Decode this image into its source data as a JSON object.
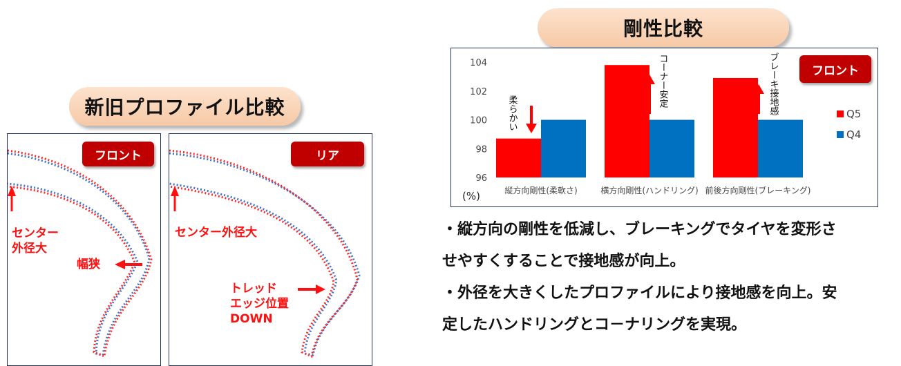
{
  "profile_section": {
    "title": "新旧プロファイル比較",
    "front_panel": {
      "badge": "フロント",
      "label_center_line1": "センター",
      "label_center_line2": "外径大",
      "label_narrow": "幅狭"
    },
    "rear_panel": {
      "badge": "リア",
      "label_center": "センター外径大",
      "label_tread_line1": "トレッド",
      "label_tread_line2": "エッジ位置",
      "label_tread_line3": "DOWN"
    },
    "colors": {
      "new_profile": "#ff2a2a",
      "old_profile": "#4472c4"
    }
  },
  "rigidity_section": {
    "title": "剛性比較",
    "badge": "フロント",
    "annotations": [
      "柔らかい",
      "コーナー安定",
      "ブレーキ接地感"
    ]
  },
  "chart_data": {
    "type": "bar",
    "categories": [
      "縦方向剛性(柔軟さ)",
      "横方向剛性(ハンドリング)",
      "前後方向剛性(ブレーキング)"
    ],
    "series": [
      {
        "name": "Q5",
        "values": [
          98.7,
          103.8,
          102.9
        ],
        "color": "#ff0000"
      },
      {
        "name": "Q4",
        "values": [
          100,
          100,
          100
        ],
        "color": "#0070c0"
      }
    ],
    "ylabel": "(%)",
    "ylim": [
      96,
      104
    ],
    "yticks": [
      96,
      98,
      100,
      102,
      104
    ],
    "grid": false,
    "legend": "right"
  },
  "description": {
    "line1": "・縦方向の剛性を低減し、ブレーキングでタイヤを変形さ",
    "line2": "せやすくすることで接地感が向上。",
    "line3": "・外径を大きくしたプロファイルにより接地感を向上。安",
    "line4": "定したハンドリングとコ－ナリングを実現。"
  }
}
